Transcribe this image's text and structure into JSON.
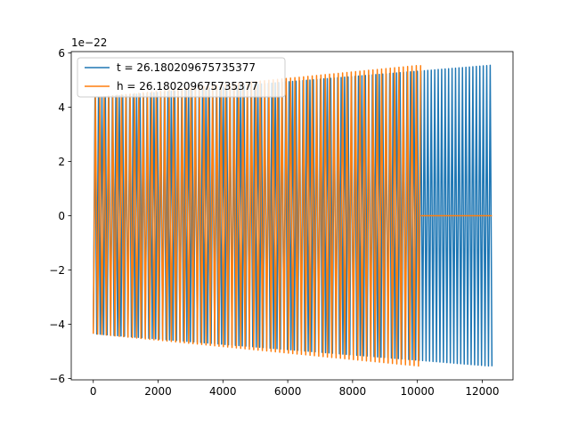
{
  "chart_data": {
    "type": "line",
    "title": "",
    "xlabel": "",
    "ylabel": "",
    "offset_text": "1e−22",
    "xlim": [
      -680,
      12950
    ],
    "ylim": [
      -6.05,
      6.05
    ],
    "x_ticks": [
      0,
      2000,
      4000,
      6000,
      8000,
      10000,
      12000
    ],
    "x_tick_labels": [
      "0",
      "2000",
      "4000",
      "6000",
      "8000",
      "10000",
      "12000"
    ],
    "y_ticks": [
      -6,
      -4,
      -2,
      0,
      2,
      4,
      6
    ],
    "y_tick_labels": [
      "−6",
      "−4",
      "−2",
      "0",
      "2",
      "4",
      "6"
    ],
    "grid": false,
    "legend_position": "top-left",
    "series": [
      {
        "name": "t = 26.180209675735377",
        "color": "#1f77b4",
        "cycles": 115,
        "segments": [
          {
            "x_start": 0,
            "x_end": 12300,
            "amplitude_start": 4.35,
            "amplitude_end": 5.55
          }
        ]
      },
      {
        "name": "h = 26.180209675735377",
        "color": "#ff7f0e",
        "cycles": 92,
        "segments": [
          {
            "x_start": 0,
            "x_end": 10100,
            "amplitude_start": 4.35,
            "amplitude_end": 5.55
          },
          {
            "x_start": 10100,
            "x_end": 12300,
            "amplitude_start": 0,
            "amplitude_end": 0
          }
        ]
      }
    ]
  }
}
